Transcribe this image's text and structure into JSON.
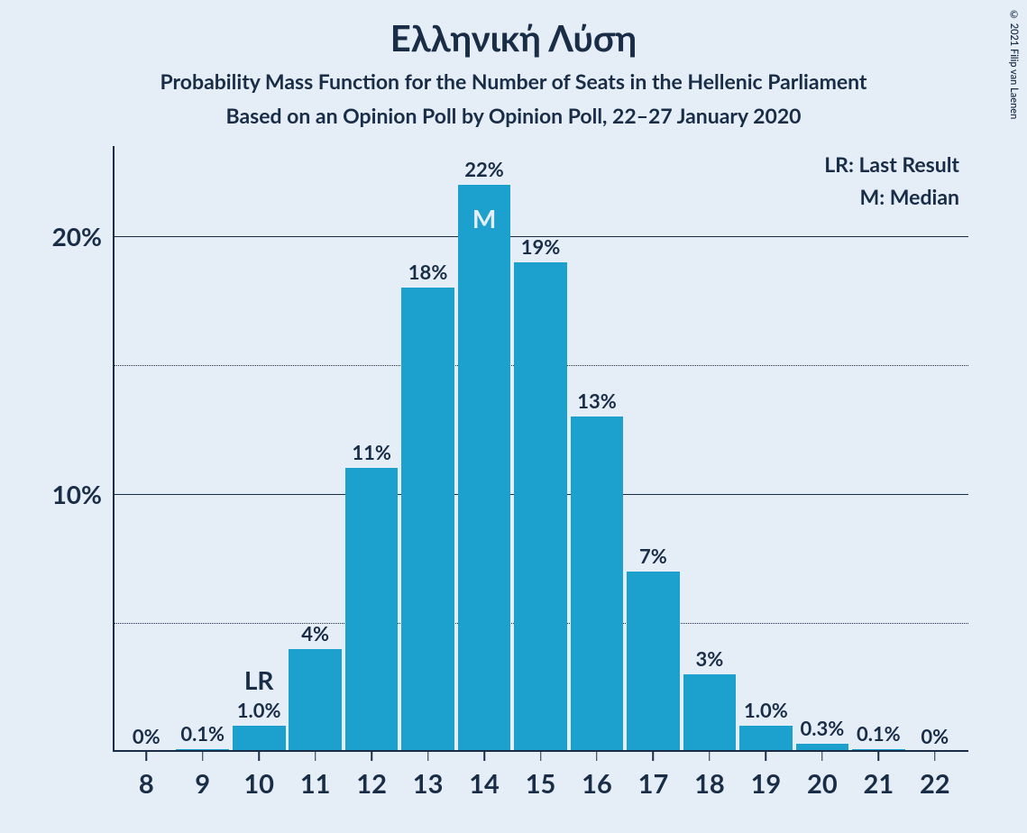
{
  "copyright": "© 2021 Filip van Laenen",
  "titles": {
    "main": "Ελληνική Λύση",
    "sub1": "Probability Mass Function for the Number of Seats in the Hellenic Parliament",
    "sub2": "Based on an Opinion Poll by Opinion Poll, 22–27 January 2020"
  },
  "legend": {
    "lr": "LR: Last Result",
    "m": "M: Median"
  },
  "chart": {
    "type": "bar",
    "bar_color": "#1ca0ce",
    "background_color": "#e5eef7",
    "text_color": "#1a2d47",
    "grid_color": "#1a2d47",
    "ylim_max": 23.5,
    "y_ticks": [
      {
        "value": 20,
        "label": "20%",
        "style": "solid"
      },
      {
        "value": 15,
        "label": "",
        "style": "dotted"
      },
      {
        "value": 10,
        "label": "10%",
        "style": "solid"
      },
      {
        "value": 5,
        "label": "",
        "style": "dotted"
      }
    ],
    "categories": [
      "8",
      "9",
      "10",
      "11",
      "12",
      "13",
      "14",
      "15",
      "16",
      "17",
      "18",
      "19",
      "20",
      "21",
      "22"
    ],
    "values": [
      0,
      0.1,
      1.0,
      4,
      11,
      18,
      22,
      19,
      13,
      7,
      3,
      1.0,
      0.3,
      0.1,
      0
    ],
    "value_labels": [
      "0%",
      "0.1%",
      "1.0%",
      "4%",
      "11%",
      "18%",
      "22%",
      "19%",
      "13%",
      "7%",
      "3%",
      "1.0%",
      "0.3%",
      "0.1%",
      "0%"
    ],
    "markers": [
      {
        "index": 2,
        "text": "LR",
        "placement": "above"
      },
      {
        "index": 6,
        "text": "M",
        "placement": "inside"
      }
    ],
    "title_fontsize": 40,
    "subtitle_fontsize": 23,
    "axis_label_fontsize": 29,
    "value_label_fontsize": 22,
    "bar_width_ratio": 0.94
  }
}
